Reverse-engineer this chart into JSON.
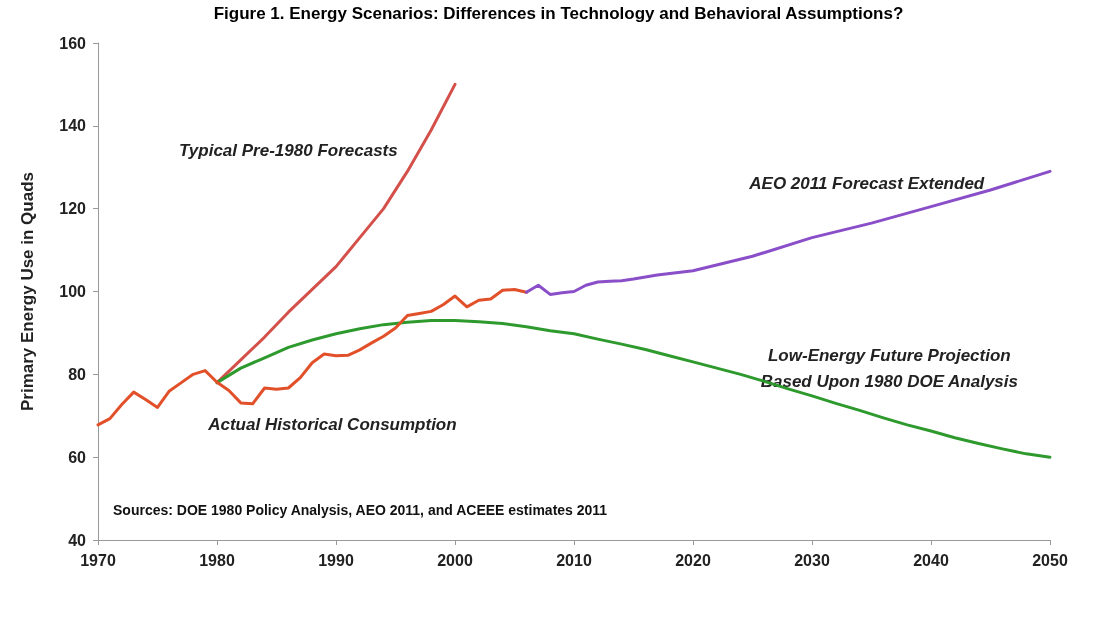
{
  "chart_data": {
    "type": "line",
    "title": "Figure 1. Energy Scenarios: Differences in Technology and Behavioral Assumptions?",
    "ylabel": "Primary Energy Use in Quads",
    "annotations": [
      "Sources: DOE 1980 Policy Analysis, AEO 2011, and ACEEE estimates 2011"
    ],
    "xlim": [
      1970,
      2050
    ],
    "xticks": [
      1970,
      1980,
      1990,
      2000,
      2010,
      2020,
      2030,
      2040,
      2050
    ],
    "ylim": [
      40,
      160
    ],
    "yticks": [
      40,
      60,
      80,
      100,
      120,
      140,
      160
    ],
    "grid": false,
    "legend": false,
    "marker": "none",
    "line_style": "solid",
    "series": [
      {
        "name": "Typical Pre-1980 Forecasts",
        "color": "#d4504a",
        "x": [
          1980,
          1982,
          1984,
          1986,
          1988,
          1990,
          1992,
          1994,
          1996,
          1998,
          2000
        ],
        "values": [
          78,
          83.5,
          89,
          95,
          100.5,
          106,
          113,
          120,
          129,
          139,
          150
        ]
      },
      {
        "name": "Low-Energy Future Projection\nBased Upon 1980 DOE Analysis",
        "color": "#2e9a2e",
        "x": [
          1980,
          1982,
          1984,
          1986,
          1988,
          1990,
          1992,
          1994,
          1996,
          1998,
          2000,
          2002,
          2004,
          2006,
          2008,
          2010,
          2012,
          2014,
          2016,
          2018,
          2020,
          2022,
          2024,
          2026,
          2028,
          2030,
          2032,
          2034,
          2036,
          2038,
          2040,
          2042,
          2044,
          2046,
          2048,
          2050
        ],
        "values": [
          78,
          81.5,
          84,
          86.5,
          88.3,
          89.8,
          91,
          92,
          92.6,
          93,
          93,
          92.7,
          92.3,
          91.5,
          90.5,
          89.8,
          88.5,
          87.3,
          86,
          84.5,
          83,
          81.5,
          80,
          78.3,
          76.5,
          74.8,
          73,
          71.3,
          69.5,
          67.8,
          66.3,
          64.7,
          63.3,
          62,
          60.8,
          60
        ]
      },
      {
        "name": "Actual Historical Consumption",
        "color": "#e2502a",
        "x": [
          1970,
          1971,
          1972,
          1973,
          1974,
          1975,
          1976,
          1977,
          1978,
          1979,
          1980,
          1981,
          1982,
          1983,
          1984,
          1985,
          1986,
          1987,
          1988,
          1989,
          1990,
          1991,
          1992,
          1993,
          1994,
          1995,
          1996,
          1997,
          1998,
          1999,
          2000,
          2001,
          2002,
          2003,
          2004,
          2005,
          2006
        ],
        "values": [
          67.8,
          69.3,
          72.7,
          75.7,
          73.9,
          72,
          76,
          78,
          80,
          80.9,
          78.1,
          76.1,
          73.1,
          72.9,
          76.7,
          76.4,
          76.7,
          79.2,
          82.8,
          84.9,
          84.5,
          84.6,
          85.9,
          87.6,
          89.2,
          91.2,
          94.2,
          94.7,
          95.2,
          96.8,
          98.9,
          96.3,
          97.9,
          98.2,
          100.3,
          100.5,
          99.8
        ]
      },
      {
        "name": "AEO 2011 Forecast Extended",
        "color": "#8a4fc8",
        "x": [
          2006,
          2007,
          2008,
          2009,
          2010,
          2011,
          2012,
          2013,
          2014,
          2015,
          2017,
          2020,
          2025,
          2030,
          2035,
          2040,
          2045,
          2050
        ],
        "values": [
          99.8,
          101.5,
          99.3,
          99.7,
          100,
          101.5,
          102.3,
          102.5,
          102.6,
          103,
          104,
          105,
          108.5,
          113,
          116.5,
          120.5,
          124.5,
          129
        ]
      }
    ]
  }
}
